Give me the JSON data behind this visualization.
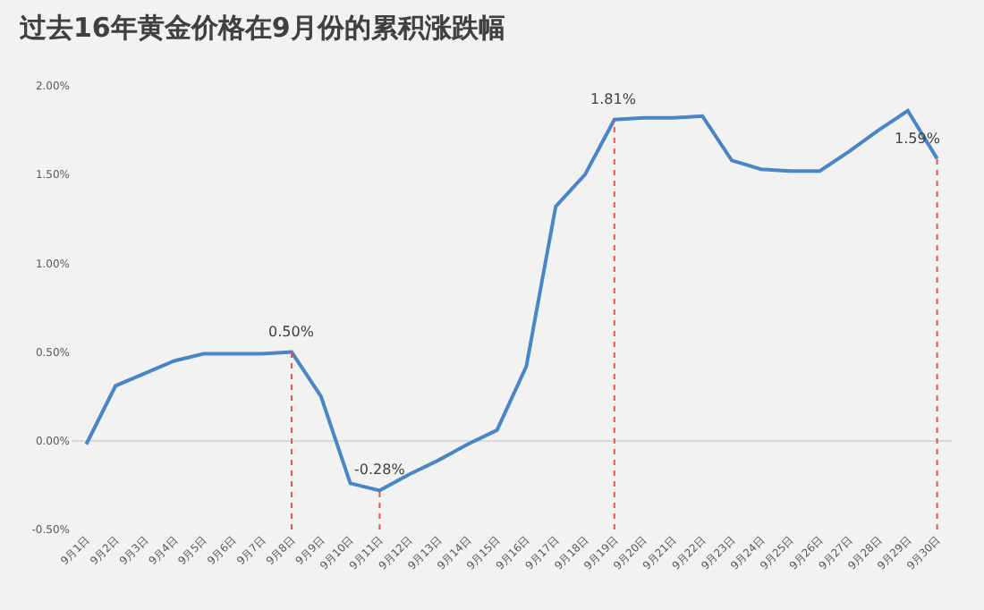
{
  "chart_data": {
    "type": "line",
    "title": "过去16年黄金价格在9月份的累积涨跌幅",
    "categories": [
      "9月1日",
      "9月2日",
      "9月3日",
      "9月4日",
      "9月5日",
      "9月6日",
      "9月7日",
      "9月8日",
      "9月9日",
      "9月10日",
      "9月11日",
      "9月12日",
      "9月13日",
      "9月14日",
      "9月15日",
      "9月16日",
      "9月17日",
      "9月18日",
      "9月19日",
      "9月20日",
      "9月21日",
      "9月22日",
      "9月23日",
      "9月24日",
      "9月25日",
      "9月26日",
      "9月27日",
      "9月28日",
      "9月29日",
      "9月30日"
    ],
    "series": [
      {
        "color": "#4a86c5",
        "values": [
          -0.02,
          0.31,
          0.38,
          0.45,
          0.49,
          0.49,
          0.49,
          0.5,
          0.25,
          -0.24,
          -0.28,
          -0.19,
          -0.11,
          -0.02,
          0.06,
          0.42,
          1.32,
          1.5,
          1.81,
          1.82,
          1.82,
          1.83,
          1.58,
          1.53,
          1.52,
          1.52,
          1.63,
          1.75,
          1.86,
          1.59
        ]
      }
    ],
    "ylim": [
      -0.5,
      2.0
    ],
    "yticks": [
      {
        "value": -0.5,
        "label": "-0.50%"
      },
      {
        "value": 0,
        "label": "0.00%"
      },
      {
        "value": 0.5,
        "label": "0.50%"
      },
      {
        "value": 1.0,
        "label": "1.00%"
      },
      {
        "value": 1.5,
        "label": "1.50%"
      },
      {
        "value": 2.0,
        "label": "2.00%"
      }
    ],
    "grid": false,
    "marker": "none",
    "line_style": "solid",
    "ref_lines": [
      {
        "axis": "x",
        "value": "9月8日",
        "color": "#e8534a",
        "line_style": "dotted"
      },
      {
        "axis": "x",
        "value": "9月11日",
        "color": "#e8534a",
        "line_style": "dotted"
      },
      {
        "axis": "x",
        "value": "9月19日",
        "color": "#e8534a",
        "line_style": "dotted"
      },
      {
        "axis": "x",
        "value": "9月30日",
        "color": "#e8534a",
        "line_style": "dotted"
      }
    ],
    "annotations": [
      {
        "text": "0.50%",
        "x": "9月8日",
        "y": 0.5
      },
      {
        "text": "-0.28%",
        "x": "9月11日",
        "y": -0.28
      },
      {
        "text": "1.81%",
        "x": "9月19日",
        "y": 1.81
      },
      {
        "text": "1.59%",
        "x": "9月30日",
        "y": 1.59
      }
    ]
  }
}
